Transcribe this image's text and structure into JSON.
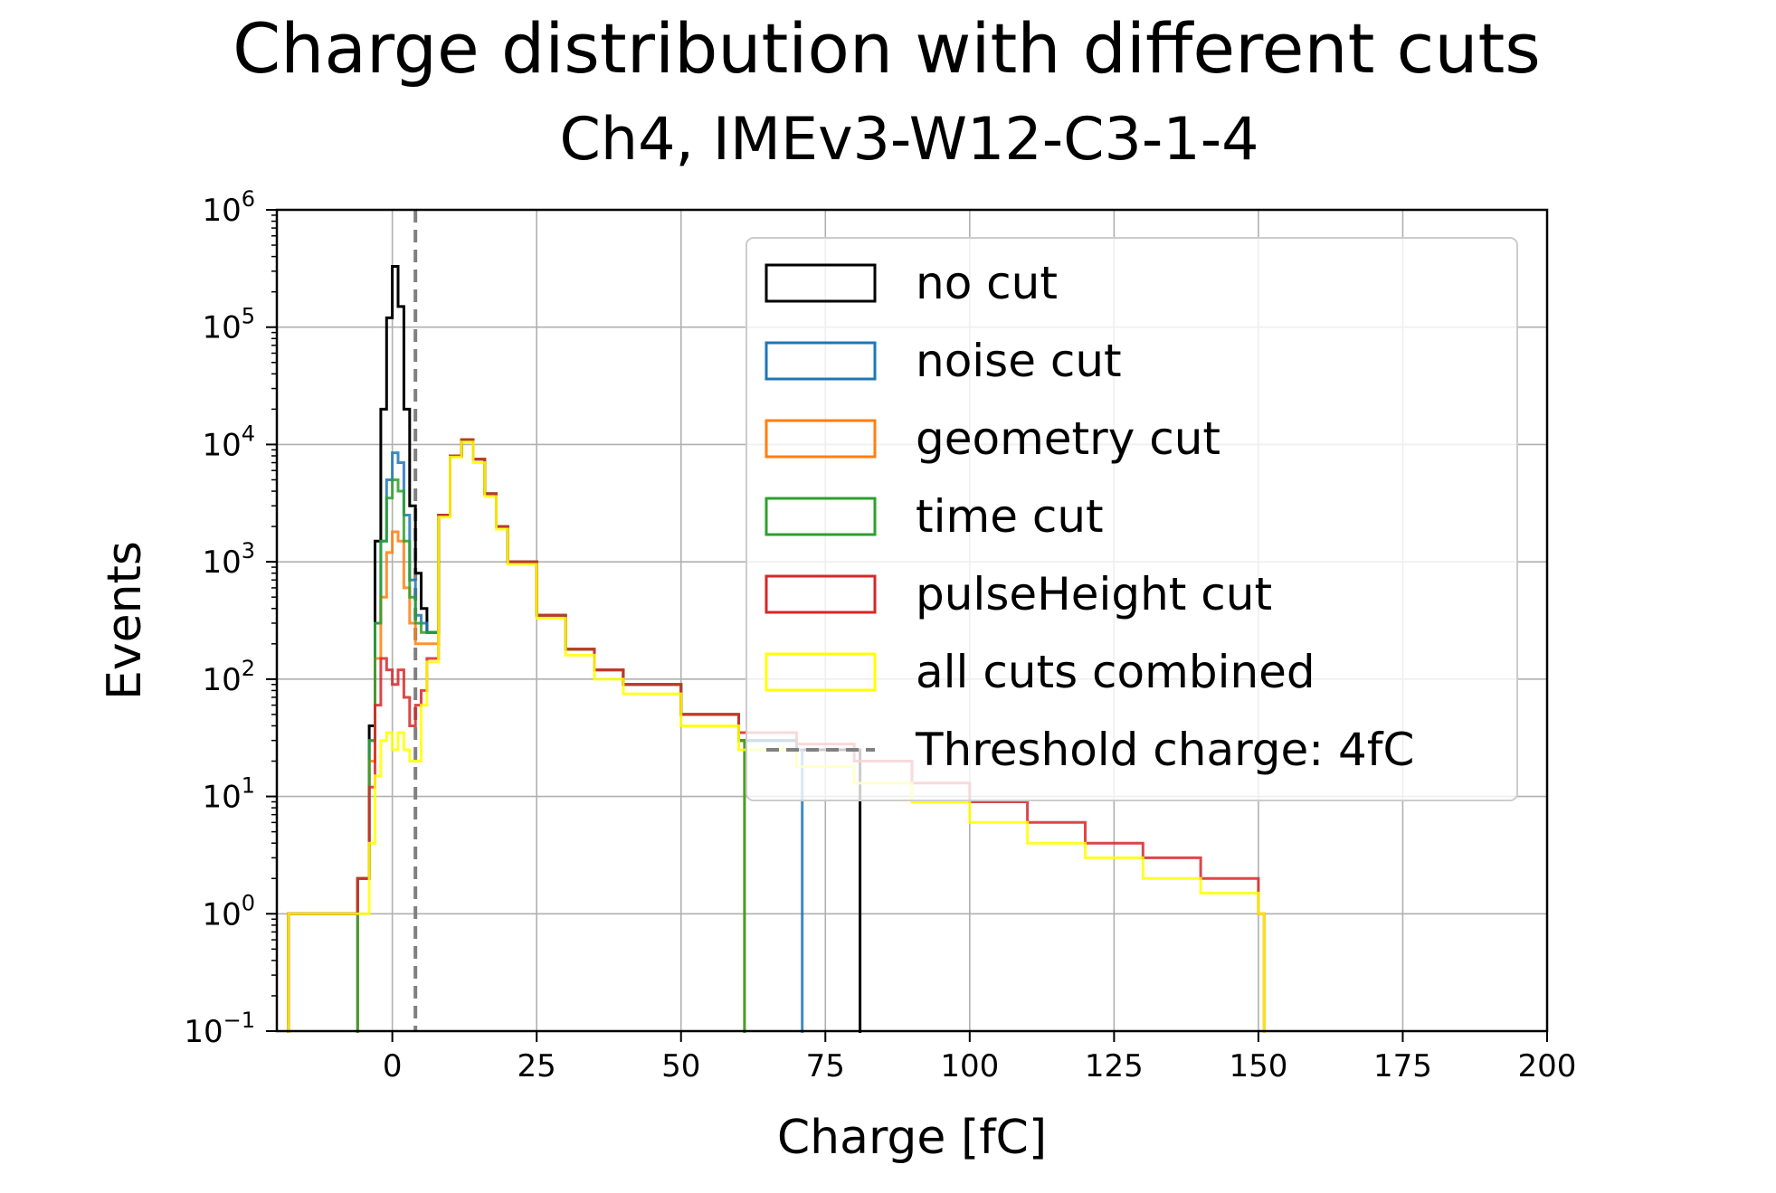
{
  "chart_data": {
    "type": "histogram",
    "title": "Charge distribution with different cuts",
    "subtitle": "Ch4, IMEv3-W12-C3-1-4",
    "xlabel": "Charge [fC]",
    "ylabel": "Events",
    "xlim": [
      -20,
      200
    ],
    "ylim": [
      0.1,
      1000000
    ],
    "yscale": "log",
    "grid": true,
    "legend_position": "top-right",
    "x_ticks": [
      "0",
      "25",
      "50",
      "75",
      "100",
      "125",
      "150",
      "175",
      "200"
    ],
    "x_tick_values": [
      0,
      25,
      50,
      75,
      100,
      125,
      150,
      175,
      200
    ],
    "y_ticks": [
      {
        "value": 0.1,
        "base": "10",
        "exp": "−1"
      },
      {
        "value": 1,
        "base": "10",
        "exp": "0"
      },
      {
        "value": 10,
        "base": "10",
        "exp": "1"
      },
      {
        "value": 100,
        "base": "10",
        "exp": "2"
      },
      {
        "value": 1000,
        "base": "10",
        "exp": "3"
      },
      {
        "value": 10000,
        "base": "10",
        "exp": "4"
      },
      {
        "value": 100000,
        "base": "10",
        "exp": "5"
      },
      {
        "value": 1000000,
        "base": "10",
        "exp": "6"
      }
    ],
    "threshold": {
      "value": 4,
      "label": "Threshold charge: 4fC",
      "color": "#808080"
    },
    "series": [
      {
        "name": "no cut",
        "color": "#000000",
        "x": [
          -18,
          -10,
          -6,
          -4,
          -3,
          -2,
          -1,
          0,
          1,
          2,
          3,
          4,
          5,
          6,
          8,
          10,
          12,
          14,
          16,
          18,
          20,
          25,
          30,
          35,
          40,
          50,
          60,
          70,
          80
        ],
        "y": [
          1,
          1,
          2,
          40,
          1500,
          20000,
          120000,
          330000,
          150000,
          20000,
          3000,
          800,
          400,
          250,
          2500,
          8000,
          11000,
          7500,
          3800,
          2000,
          1000,
          350,
          180,
          120,
          90,
          50,
          30,
          25,
          25
        ]
      },
      {
        "name": "noise cut",
        "color": "#1f77b4",
        "x": [
          -6,
          -4,
          -3,
          -2,
          -1,
          0,
          1,
          2,
          3,
          4,
          5,
          6,
          8,
          10,
          12,
          14,
          16,
          18,
          20,
          25,
          30,
          35,
          40,
          50,
          60,
          70
        ],
        "y": [
          2,
          30,
          300,
          1500,
          5000,
          8500,
          7000,
          2500,
          700,
          350,
          300,
          250,
          2500,
          8000,
          11000,
          7500,
          3800,
          2000,
          1000,
          350,
          180,
          120,
          90,
          50,
          30,
          25
        ]
      },
      {
        "name": "geometry cut",
        "color": "#ff7f0e",
        "x": [
          -6,
          -4,
          -3,
          -2,
          -1,
          0,
          1,
          2,
          3,
          4,
          5,
          6,
          8,
          10,
          12,
          14,
          16,
          18,
          20,
          25,
          30,
          35,
          40,
          50,
          60
        ],
        "y": [
          2,
          20,
          150,
          500,
          1200,
          1800,
          1500,
          600,
          300,
          200,
          200,
          200,
          2500,
          8000,
          11000,
          7500,
          3800,
          2000,
          1000,
          350,
          180,
          120,
          90,
          50,
          30
        ]
      },
      {
        "name": "time cut",
        "color": "#2ca02c",
        "x": [
          -6,
          -4,
          -3,
          -2,
          -1,
          0,
          1,
          2,
          3,
          4,
          5,
          6,
          8,
          10,
          12,
          14,
          16,
          18,
          20,
          25,
          30,
          35,
          40,
          50,
          60
        ],
        "y": [
          2,
          30,
          300,
          1500,
          3500,
          5000,
          4000,
          1500,
          500,
          300,
          250,
          250,
          2500,
          8000,
          11000,
          7500,
          3800,
          2000,
          1000,
          350,
          180,
          120,
          90,
          50,
          30
        ]
      },
      {
        "name": "pulseHeight cut",
        "color": "#d62728",
        "x": [
          -18,
          -10,
          -6,
          -4,
          -3,
          -2,
          -1,
          0,
          1,
          2,
          3,
          4,
          5,
          6,
          8,
          10,
          12,
          14,
          16,
          18,
          20,
          25,
          30,
          35,
          40,
          50,
          60,
          70,
          80,
          90,
          100,
          110,
          120,
          130,
          140,
          150
        ],
        "y": [
          1,
          1,
          2,
          12,
          60,
          150,
          120,
          90,
          120,
          70,
          40,
          60,
          80,
          150,
          2500,
          8000,
          11000,
          7500,
          3800,
          2000,
          1000,
          350,
          180,
          120,
          90,
          50,
          35,
          28,
          20,
          13,
          9,
          6,
          4,
          3,
          2,
          1
        ]
      },
      {
        "name": "all cuts combined",
        "color": "#ffff00",
        "x": [
          -18,
          -10,
          -6,
          -4,
          -3,
          -2,
          -1,
          0,
          1,
          2,
          3,
          4,
          5,
          6,
          8,
          10,
          12,
          14,
          16,
          18,
          20,
          25,
          30,
          35,
          40,
          50,
          60,
          70,
          80,
          90,
          100,
          110,
          120,
          130,
          140,
          150
        ],
        "y": [
          1,
          1,
          1,
          4,
          15,
          30,
          35,
          25,
          35,
          25,
          20,
          20,
          60,
          140,
          2400,
          7800,
          10500,
          7000,
          3600,
          1900,
          950,
          330,
          160,
          100,
          75,
          40,
          25,
          18,
          13,
          9,
          6,
          4,
          3,
          2,
          1.5,
          1
        ]
      }
    ]
  }
}
